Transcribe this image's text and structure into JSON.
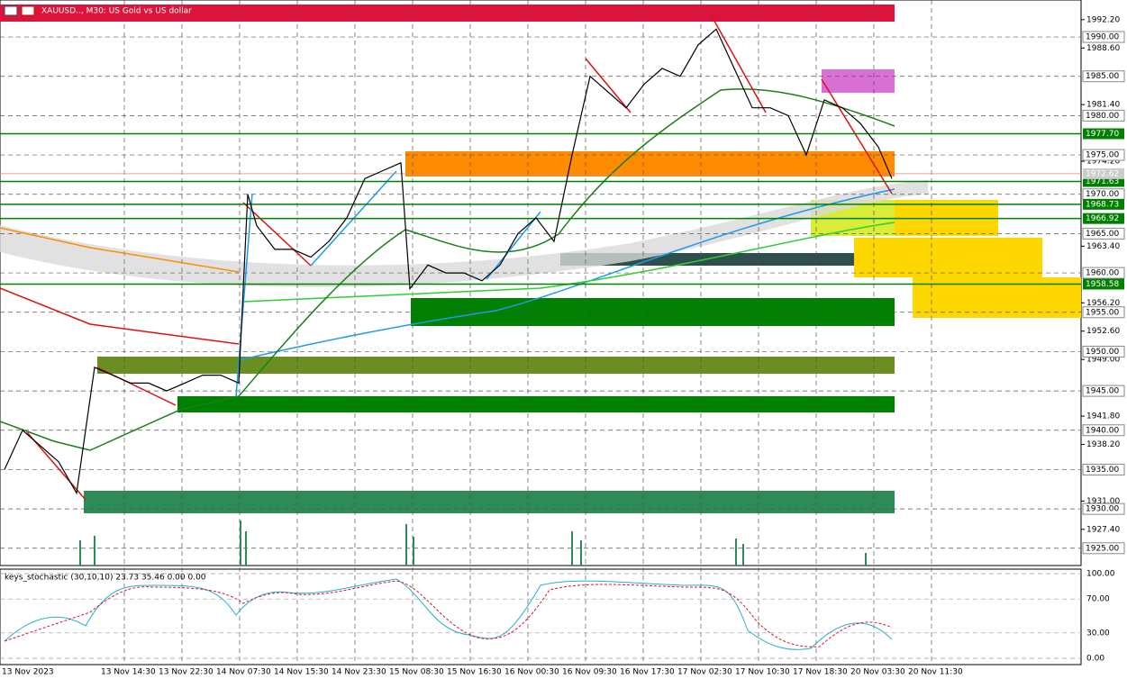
{
  "header": {
    "title": "XAUUSD.., M30:  US Gold vs US dollar"
  },
  "chart_data": {
    "type": "line",
    "color": "#000000",
    "x": [
      5,
      25,
      45,
      65,
      85,
      105,
      125,
      145,
      165,
      185,
      205,
      225,
      245,
      265,
      275,
      285,
      305,
      325,
      345,
      365,
      385,
      405,
      425,
      445,
      455,
      475,
      495,
      515,
      535,
      555,
      575,
      595,
      615,
      635,
      655,
      675,
      695,
      715,
      735,
      755,
      775,
      795,
      815,
      835,
      855,
      875,
      895,
      915,
      935,
      955,
      975,
      990
    ],
    "values": [
      1935,
      1940,
      1938,
      1936,
      1932,
      1948,
      1947,
      1946,
      1946,
      1945,
      1946,
      1947,
      1947,
      1946,
      1970,
      1966,
      1963,
      1963,
      1962,
      1964,
      1967,
      1972,
      1973,
      1974,
      1958,
      1961,
      1960,
      1960,
      1959,
      1961,
      1965,
      1967,
      1964,
      1975,
      1985,
      1983,
      1981,
      1984,
      1986,
      1985,
      1989,
      1991,
      1986,
      1981,
      1981,
      1980,
      1975,
      1982,
      1981,
      1979,
      1976,
      1972
    ],
    "xlim": [
      0,
      1200
    ],
    "ylim": [
      1922.8,
      1994.7
    ],
    "yticks": [
      {
        "value": 1992.2,
        "label": "1992.20"
      },
      {
        "value": 1988.6,
        "label": "1988.60"
      },
      {
        "value": 1981.4,
        "label": "1981.40"
      },
      {
        "value": 1974.2,
        "label": "1974.20"
      },
      {
        "value": 1963.4,
        "label": "1963.40"
      },
      {
        "value": 1956.2,
        "label": "1956.20"
      },
      {
        "value": 1952.6,
        "label": "1952.60"
      },
      {
        "value": 1949,
        "label": "1949.00"
      },
      {
        "value": 1941.8,
        "label": "1941.80"
      },
      {
        "value": 1938.2,
        "label": "1938.20"
      },
      {
        "value": 1931,
        "label": "1931.00"
      },
      {
        "value": 1927.4,
        "label": "1927.40"
      }
    ],
    "round_levels": [
      {
        "value": 1990,
        "label": "1990.00"
      },
      {
        "value": 1985,
        "label": "1985.00"
      },
      {
        "value": 1980,
        "label": "1980.00"
      },
      {
        "value": 1975,
        "label": "1975.00"
      },
      {
        "value": 1970,
        "label": "1970.00"
      },
      {
        "value": 1965,
        "label": "1965.00"
      },
      {
        "value": 1960,
        "label": "1960.00"
      },
      {
        "value": 1955,
        "label": "1955.00"
      },
      {
        "value": 1950,
        "label": "1950.00"
      },
      {
        "value": 1945,
        "label": "1945.00"
      },
      {
        "value": 1940,
        "label": "1940.00"
      },
      {
        "value": 1935,
        "label": "1935.00"
      },
      {
        "value": 1930,
        "label": "1930.00"
      },
      {
        "value": 1925,
        "label": "1925.00"
      }
    ],
    "green_levels": [
      {
        "value": 1977.7,
        "label": "1977.70"
      },
      {
        "value": 1971.63,
        "label": "1971.63"
      },
      {
        "value": 1968.73,
        "label": "1968.73"
      },
      {
        "value": 1966.92,
        "label": "1966.92"
      },
      {
        "value": 1958.58,
        "label": "1958.58"
      }
    ],
    "current_price": {
      "value": 1972.62,
      "label": "1972.62"
    },
    "time_labels": [
      "13 Nov 2023",
      "13 Nov 14:30",
      "13 Nov 22:30",
      "14 Nov 07:30",
      "14 Nov 15:30",
      "14 Nov 23:30",
      "15 Nov 08:30",
      "15 Nov 16:30",
      "16 Nov 00:30",
      "16 Nov 09:30",
      "16 Nov 17:30",
      "17 Nov 02:30",
      "17 Nov 10:30",
      "17 Nov 18:30",
      "20 Nov 03:30",
      "20 Nov 11:30"
    ]
  },
  "indicator": {
    "label": "keys_stochastic (30,10,10) 23.73 35.46 0.00 0.00",
    "ylim": [
      0,
      100
    ],
    "yticks": [
      {
        "value": 100,
        "label": "100.00"
      },
      {
        "value": 70,
        "label": "70.00"
      },
      {
        "value": 30,
        "label": "30.00"
      },
      {
        "value": 0,
        "label": "0.00"
      }
    ]
  }
}
